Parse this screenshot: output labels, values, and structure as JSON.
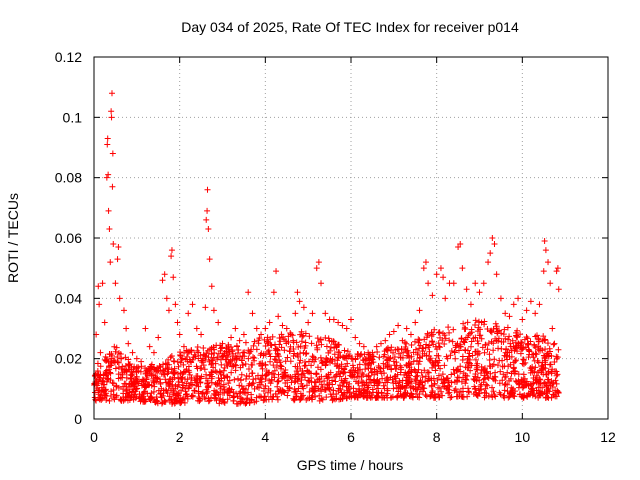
{
  "chart_data": {
    "type": "scatter",
    "title": "Day 034 of 2025, Rate Of TEC Index for receiver p014",
    "xlabel": "GPS time / hours",
    "ylabel": "ROTI / TECUs",
    "xlim": [
      0,
      12
    ],
    "ylim": [
      0,
      0.12
    ],
    "xticks": [
      0,
      2,
      4,
      6,
      8,
      10,
      12
    ],
    "xtick_labels": [
      "0",
      "2",
      "4",
      "6",
      "8",
      "10",
      "12"
    ],
    "yticks": [
      0,
      0.02,
      0.04,
      0.06,
      0.08,
      0.1,
      0.12
    ],
    "ytick_labels": [
      "0",
      "0.02",
      "0.04",
      "0.06",
      "0.08",
      "0.1",
      "0.12"
    ],
    "grid": true,
    "marker": "+",
    "marker_color": "#ff0000",
    "series": [
      {
        "name": "ROTI",
        "points": [
          [
            0.05,
            0.028
          ],
          [
            0.1,
            0.044
          ],
          [
            0.12,
            0.038
          ],
          [
            0.15,
            0.022
          ],
          [
            0.2,
            0.045
          ],
          [
            0.25,
            0.032
          ],
          [
            0.3,
            0.08
          ],
          [
            0.31,
            0.091
          ],
          [
            0.32,
            0.093
          ],
          [
            0.33,
            0.081
          ],
          [
            0.34,
            0.069
          ],
          [
            0.36,
            0.063
          ],
          [
            0.38,
            0.052
          ],
          [
            0.4,
            0.102
          ],
          [
            0.41,
            0.1
          ],
          [
            0.42,
            0.108
          ],
          [
            0.43,
            0.077
          ],
          [
            0.44,
            0.088
          ],
          [
            0.45,
            0.058
          ],
          [
            0.5,
            0.045
          ],
          [
            0.55,
            0.053
          ],
          [
            0.57,
            0.057
          ],
          [
            0.6,
            0.04
          ],
          [
            0.7,
            0.036
          ],
          [
            0.75,
            0.03
          ],
          [
            0.8,
            0.025
          ],
          [
            0.9,
            0.022
          ],
          [
            1.0,
            0.02
          ],
          [
            1.1,
            0.019
          ],
          [
            1.2,
            0.03
          ],
          [
            1.3,
            0.024
          ],
          [
            1.4,
            0.022
          ],
          [
            1.5,
            0.027
          ],
          [
            1.6,
            0.046
          ],
          [
            1.65,
            0.048
          ],
          [
            1.7,
            0.04
          ],
          [
            1.75,
            0.036
          ],
          [
            1.8,
            0.054
          ],
          [
            1.82,
            0.056
          ],
          [
            1.85,
            0.047
          ],
          [
            1.9,
            0.038
          ],
          [
            1.95,
            0.032
          ],
          [
            2.0,
            0.028
          ],
          [
            2.1,
            0.024
          ],
          [
            2.2,
            0.035
          ],
          [
            2.3,
            0.038
          ],
          [
            2.4,
            0.03
          ],
          [
            2.5,
            0.028
          ],
          [
            2.6,
            0.037
          ],
          [
            2.62,
            0.066
          ],
          [
            2.64,
            0.069
          ],
          [
            2.65,
            0.076
          ],
          [
            2.67,
            0.063
          ],
          [
            2.7,
            0.053
          ],
          [
            2.75,
            0.044
          ],
          [
            2.8,
            0.036
          ],
          [
            2.9,
            0.032
          ],
          [
            3.0,
            0.025
          ],
          [
            3.1,
            0.021
          ],
          [
            3.2,
            0.027
          ],
          [
            3.3,
            0.03
          ],
          [
            3.4,
            0.026
          ],
          [
            3.5,
            0.028
          ],
          [
            3.6,
            0.042
          ],
          [
            3.7,
            0.035
          ],
          [
            3.8,
            0.03
          ],
          [
            3.9,
            0.028
          ],
          [
            4.0,
            0.03
          ],
          [
            4.1,
            0.032
          ],
          [
            4.2,
            0.042
          ],
          [
            4.25,
            0.049
          ],
          [
            4.3,
            0.034
          ],
          [
            4.4,
            0.031
          ],
          [
            4.5,
            0.03
          ],
          [
            4.6,
            0.028
          ],
          [
            4.7,
            0.035
          ],
          [
            4.75,
            0.042
          ],
          [
            4.8,
            0.039
          ],
          [
            4.9,
            0.037
          ],
          [
            5.0,
            0.032
          ],
          [
            5.1,
            0.035
          ],
          [
            5.2,
            0.05
          ],
          [
            5.25,
            0.052
          ],
          [
            5.3,
            0.045
          ],
          [
            5.4,
            0.035
          ],
          [
            5.5,
            0.033
          ],
          [
            5.6,
            0.033
          ],
          [
            5.7,
            0.032
          ],
          [
            5.8,
            0.031
          ],
          [
            5.9,
            0.03
          ],
          [
            6.0,
            0.033
          ],
          [
            6.1,
            0.027
          ],
          [
            6.2,
            0.025
          ],
          [
            6.3,
            0.024
          ],
          [
            6.4,
            0.022
          ],
          [
            6.5,
            0.022
          ],
          [
            6.6,
            0.024
          ],
          [
            6.7,
            0.025
          ],
          [
            6.8,
            0.026
          ],
          [
            6.9,
            0.028
          ],
          [
            7.0,
            0.029
          ],
          [
            7.1,
            0.031
          ],
          [
            7.2,
            0.026
          ],
          [
            7.3,
            0.03
          ],
          [
            7.4,
            0.028
          ],
          [
            7.5,
            0.032
          ],
          [
            7.6,
            0.036
          ],
          [
            7.7,
            0.05
          ],
          [
            7.75,
            0.052
          ],
          [
            7.8,
            0.045
          ],
          [
            7.9,
            0.041
          ],
          [
            8.0,
            0.048
          ],
          [
            8.1,
            0.05
          ],
          [
            8.15,
            0.047
          ],
          [
            8.2,
            0.04
          ],
          [
            8.3,
            0.045
          ],
          [
            8.4,
            0.045
          ],
          [
            8.5,
            0.057
          ],
          [
            8.55,
            0.058
          ],
          [
            8.6,
            0.05
          ],
          [
            8.7,
            0.043
          ],
          [
            8.8,
            0.038
          ],
          [
            8.9,
            0.045
          ],
          [
            9.0,
            0.042
          ],
          [
            9.1,
            0.045
          ],
          [
            9.2,
            0.052
          ],
          [
            9.25,
            0.055
          ],
          [
            9.3,
            0.06
          ],
          [
            9.35,
            0.058
          ],
          [
            9.4,
            0.048
          ],
          [
            9.5,
            0.04
          ],
          [
            9.6,
            0.035
          ],
          [
            9.7,
            0.034
          ],
          [
            9.8,
            0.038
          ],
          [
            9.9,
            0.04
          ],
          [
            10.0,
            0.033
          ],
          [
            10.1,
            0.036
          ],
          [
            10.2,
            0.039
          ],
          [
            10.3,
            0.035
          ],
          [
            10.4,
            0.038
          ],
          [
            10.5,
            0.049
          ],
          [
            10.52,
            0.059
          ],
          [
            10.55,
            0.056
          ],
          [
            10.6,
            0.052
          ],
          [
            10.65,
            0.045
          ],
          [
            10.7,
            0.03
          ],
          [
            10.75,
            0.025
          ],
          [
            10.8,
            0.049
          ],
          [
            10.83,
            0.05
          ],
          [
            10.85,
            0.043
          ]
        ],
        "band": [
          [
            0.0,
            0.006,
            0.018
          ],
          [
            0.5,
            0.006,
            0.022
          ],
          [
            1.0,
            0.006,
            0.016
          ],
          [
            1.5,
            0.005,
            0.017
          ],
          [
            2.0,
            0.005,
            0.02
          ],
          [
            2.5,
            0.006,
            0.022
          ],
          [
            3.0,
            0.005,
            0.022
          ],
          [
            3.5,
            0.005,
            0.023
          ],
          [
            4.0,
            0.006,
            0.025
          ],
          [
            4.5,
            0.006,
            0.026
          ],
          [
            5.0,
            0.006,
            0.026
          ],
          [
            5.5,
            0.006,
            0.024
          ],
          [
            6.0,
            0.007,
            0.02
          ],
          [
            6.5,
            0.007,
            0.02
          ],
          [
            7.0,
            0.007,
            0.022
          ],
          [
            7.5,
            0.007,
            0.024
          ],
          [
            8.0,
            0.007,
            0.027
          ],
          [
            8.5,
            0.007,
            0.028
          ],
          [
            9.0,
            0.007,
            0.03
          ],
          [
            9.5,
            0.007,
            0.028
          ],
          [
            10.0,
            0.007,
            0.026
          ],
          [
            10.5,
            0.007,
            0.025
          ],
          [
            10.85,
            0.007,
            0.022
          ]
        ],
        "x_range": [
          0,
          10.85
        ]
      }
    ]
  }
}
